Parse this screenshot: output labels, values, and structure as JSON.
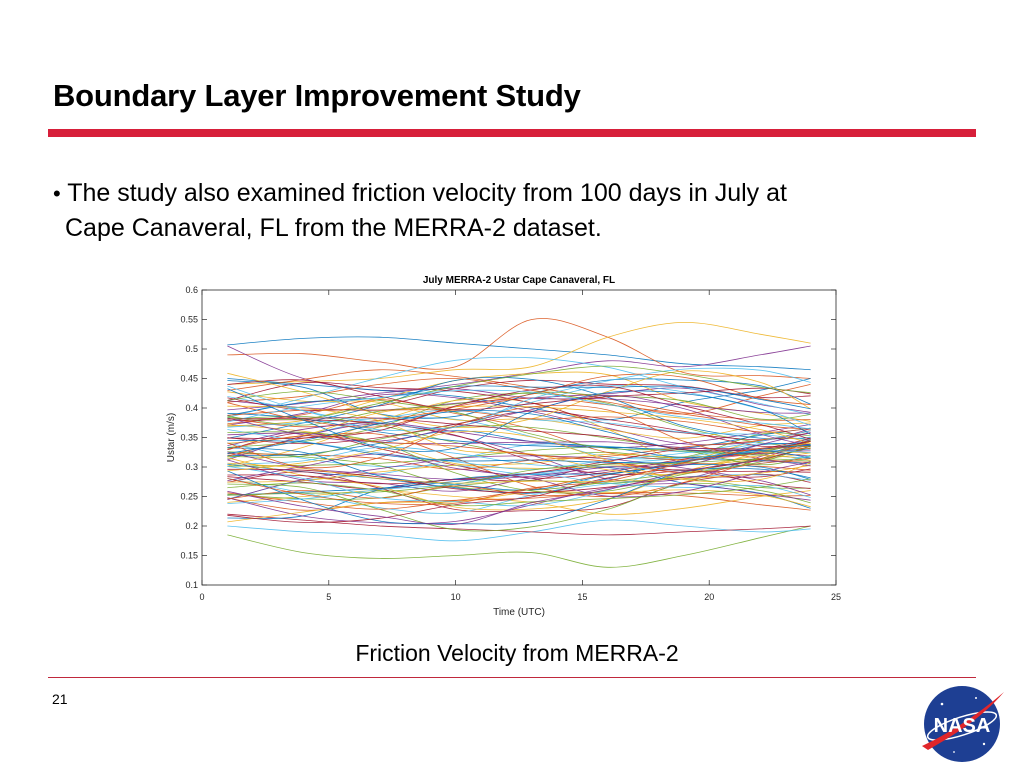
{
  "slide": {
    "title": "Boundary Layer Improvement Study",
    "bullet_marker": "•",
    "bullet_line1": "The study also examined friction velocity from 100 days in July at",
    "bullet_line2": "Cape Canaveral, FL from the MERRA-2 dataset.",
    "caption": "Friction Velocity from MERRA-2",
    "page_number": "21",
    "accent_color": "#d71f3a",
    "logo": {
      "name": "nasa-meatball-logo",
      "text": "NASA"
    }
  },
  "chart_data": {
    "type": "line",
    "title": "July MERRA-2 Ustar Cape Canaveral, FL",
    "xlabel": "Time (UTC)",
    "ylabel": "Ustar (m/s)",
    "xlim": [
      0,
      25
    ],
    "ylim": [
      0.1,
      0.6
    ],
    "xticks": [
      0,
      5,
      10,
      15,
      20,
      25
    ],
    "yticks": [
      0.1,
      0.15,
      0.2,
      0.25,
      0.3,
      0.35,
      0.4,
      0.45,
      0.5,
      0.55,
      0.6
    ],
    "xtick_labels": [
      "0",
      "5",
      "10",
      "15",
      "20",
      "25"
    ],
    "ytick_labels": [
      "0.1",
      "0.15",
      "0.2",
      "0.25",
      "0.3",
      "0.35",
      "0.4",
      "0.45",
      "0.5",
      "0.55",
      "0.6"
    ],
    "grid": false,
    "legend": "none",
    "x": [
      1,
      4,
      7,
      10,
      13,
      16,
      19,
      22,
      24
    ],
    "series_count": 100,
    "series": [
      {
        "values": [
          0.507,
          0.518,
          0.52,
          0.51,
          0.5,
          0.49,
          0.475,
          0.47,
          0.465
        ]
      },
      {
        "values": [
          0.49,
          0.492,
          0.478,
          0.47,
          0.55,
          0.52,
          0.46,
          0.455,
          0.45
        ]
      },
      {
        "values": [
          0.44,
          0.445,
          0.45,
          0.465,
          0.47,
          0.52,
          0.545,
          0.525,
          0.51
        ]
      },
      {
        "values": [
          0.505,
          0.45,
          0.43,
          0.44,
          0.46,
          0.48,
          0.47,
          0.49,
          0.505
        ]
      },
      {
        "values": [
          0.185,
          0.155,
          0.145,
          0.15,
          0.155,
          0.13,
          0.15,
          0.18,
          0.2
        ]
      },
      {
        "values": [
          0.2,
          0.19,
          0.185,
          0.175,
          0.19,
          0.21,
          0.2,
          0.19,
          0.195
        ]
      },
      {
        "values": [
          0.22,
          0.21,
          0.2,
          0.195,
          0.19,
          0.185,
          0.19,
          0.195,
          0.2
        ]
      },
      {
        "values": [
          0.45,
          0.44,
          0.43,
          0.42,
          0.4,
          0.38,
          0.41,
          0.43,
          0.45
        ]
      },
      {
        "values": [
          0.41,
          0.42,
          0.44,
          0.45,
          0.43,
          0.41,
          0.39,
          0.42,
          0.44
        ]
      },
      {
        "values": [
          0.24,
          0.25,
          0.26,
          0.25,
          0.24,
          0.22,
          0.23,
          0.25,
          0.26
        ]
      }
    ]
  }
}
